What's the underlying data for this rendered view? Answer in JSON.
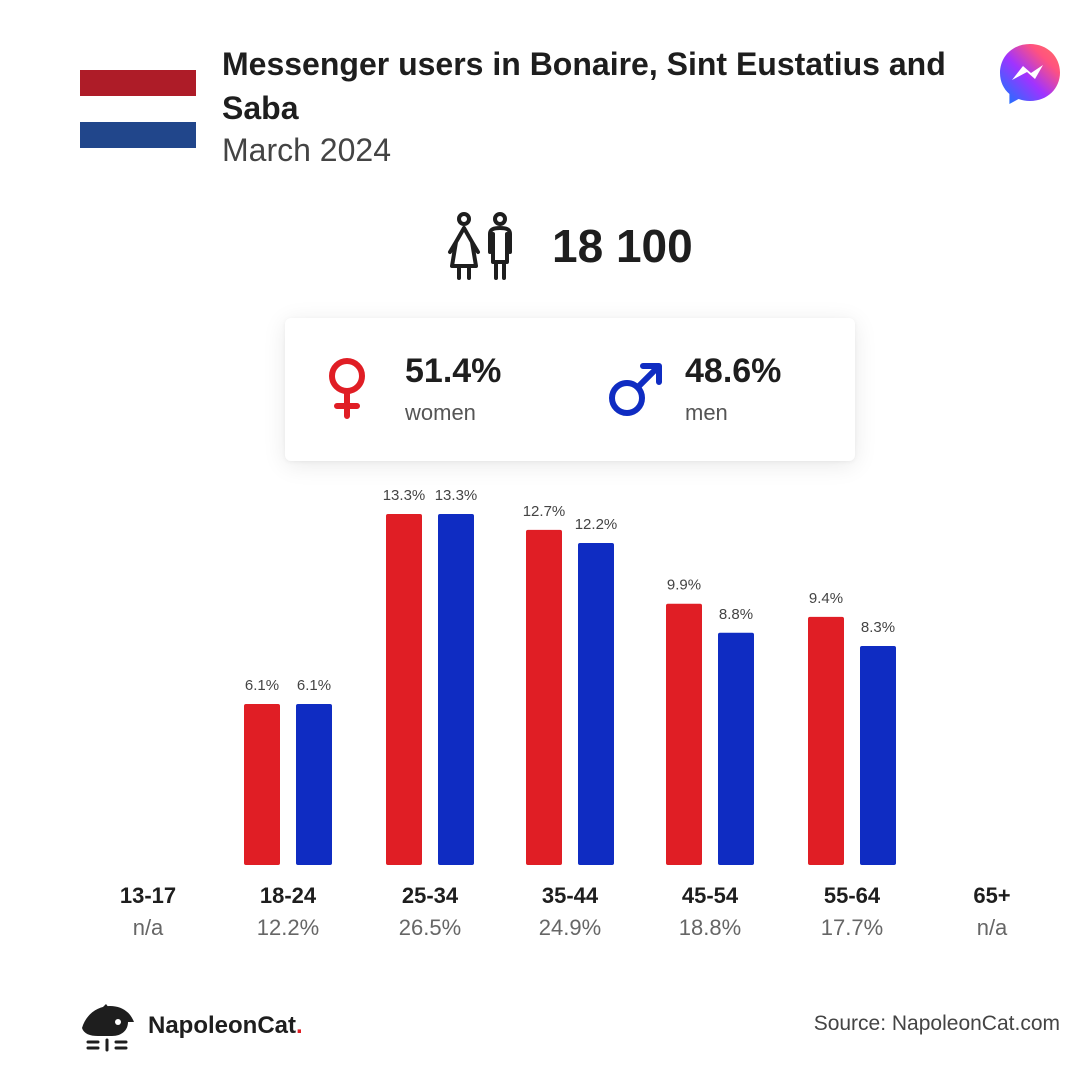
{
  "header": {
    "title": "Messenger users in Bonaire, Sint Eustatius and Saba",
    "subtitle": "March 2024"
  },
  "flag": {
    "colors": [
      "#AE1C28",
      "#FFFFFF",
      "#21468B"
    ]
  },
  "icons": {
    "app": "messenger-icon",
    "total": "people-icon",
    "women": "female-symbol-icon",
    "men": "male-symbol-icon",
    "logo": "napoleoncat-logo-icon"
  },
  "total": {
    "value": "18 100"
  },
  "gender": {
    "women": {
      "pct": "51.4%",
      "label": "women",
      "color": "#E01E25"
    },
    "men": {
      "pct": "48.6%",
      "label": "men",
      "color": "#0F2CC2"
    }
  },
  "chart_data": {
    "type": "bar",
    "categories": [
      "13-17",
      "18-24",
      "25-34",
      "35-44",
      "45-54",
      "55-64",
      "65+"
    ],
    "category_shares": [
      "n/a",
      "12.2%",
      "26.5%",
      "24.9%",
      "18.8%",
      "17.7%",
      "n/a"
    ],
    "series": [
      {
        "values": [
          null,
          6.1,
          13.3,
          12.7,
          9.9,
          9.4,
          null
        ],
        "color": "#E01E25"
      },
      {
        "values": [
          null,
          6.1,
          13.3,
          12.2,
          8.8,
          8.3,
          null
        ],
        "color": "#0F2CC2"
      }
    ],
    "ylim": [
      0,
      13.3
    ],
    "grid": false,
    "legend": "none"
  },
  "footer": {
    "brand": "NapoleonCat",
    "brand_dot": ".",
    "source": "Source: NapoleonCat.com"
  }
}
